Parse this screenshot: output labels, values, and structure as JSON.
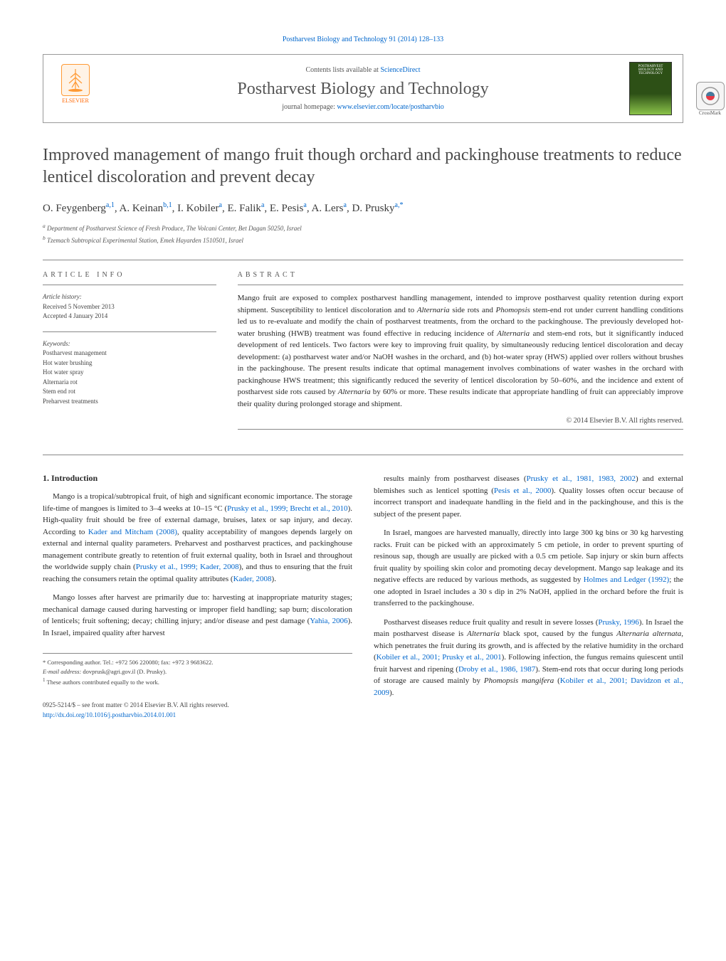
{
  "header": {
    "citation": "Postharvest Biology and Technology 91 (2014) 128–133",
    "contents_prefix": "Contents lists available at ",
    "contents_link": "ScienceDirect",
    "journal_name": "Postharvest Biology and Technology",
    "homepage_prefix": "journal homepage: ",
    "homepage_url": "www.elsevier.com/locate/postharvbio",
    "elsevier_label": "ELSEVIER",
    "cover_text": "POSTHARVEST BIOLOGY AND TECHNOLOGY",
    "crossmark_label": "CrossMark"
  },
  "article": {
    "title": "Improved management of mango fruit though orchard and packinghouse treatments to reduce lenticel discoloration and prevent decay",
    "authors_html": "O. Feygenberg",
    "authors": [
      {
        "name": "O. Feygenberg",
        "sup": "a,1"
      },
      {
        "name": "A. Keinan",
        "sup": "b,1"
      },
      {
        "name": "I. Kobiler",
        "sup": "a"
      },
      {
        "name": "E. Falik",
        "sup": "a"
      },
      {
        "name": "E. Pesis",
        "sup": "a"
      },
      {
        "name": "A. Lers",
        "sup": "a"
      },
      {
        "name": "D. Prusky",
        "sup": "a,*"
      }
    ],
    "affiliations": {
      "a": "Department of Postharvest Science of Fresh Produce, The Volcani Center, Bet Dagan 50250, Israel",
      "b": "Tzemach Subtropical Experimental Station, Emek Hayarden 1510501, Israel"
    }
  },
  "info": {
    "heading": "ARTICLE INFO",
    "history_label": "Article history:",
    "received": "Received 5 November 2013",
    "accepted": "Accepted 4 January 2014",
    "keywords_label": "Keywords:",
    "keywords": [
      "Postharvest management",
      "Hot water brushing",
      "Hot water spray",
      "Alternaria rot",
      "Stem end rot",
      "Preharvest treatments"
    ]
  },
  "abstract": {
    "heading": "ABSTRACT",
    "text": "Mango fruit are exposed to complex postharvest handling management, intended to improve postharvest quality retention during export shipment. Susceptibility to lenticel discoloration and to Alternaria side rots and Phomopsis stem-end rot under current handling conditions led us to re-evaluate and modify the chain of postharvest treatments, from the orchard to the packinghouse. The previously developed hot-water brushing (HWB) treatment was found effective in reducing incidence of Alternaria and stem-end rots, but it significantly induced development of red lenticels. Two factors were key to improving fruit quality, by simultaneously reducing lenticel discoloration and decay development: (a) postharvest water and/or NaOH washes in the orchard, and (b) hot-water spray (HWS) applied over rollers without brushes in the packinghouse. The present results indicate that optimal management involves combinations of water washes in the orchard with packinghouse HWS treatment; this significantly reduced the severity of lenticel discoloration by 50–60%, and the incidence and extent of postharvest side rots caused by Alternaria by 60% or more. These results indicate that appropriate handling of fruit can appreciably improve their quality during prolonged storage and shipment.",
    "copyright": "© 2014 Elsevier B.V. All rights reserved."
  },
  "body": {
    "intro_heading": "1. Introduction",
    "left_paragraphs": [
      "Mango is a tropical/subtropical fruit, of high and significant economic importance. The storage life-time of mangoes is limited to 3–4 weeks at 10–15 °C (Prusky et al., 1999; Brecht et al., 2010). High-quality fruit should be free of external damage, bruises, latex or sap injury, and decay. According to Kader and Mitcham (2008), quality acceptability of mangoes depends largely on external and internal quality parameters. Preharvest and postharvest practices, and packinghouse management contribute greatly to retention of fruit external quality, both in Israel and throughout the worldwide supply chain (Prusky et al., 1999; Kader, 2008), and thus to ensuring that the fruit reaching the consumers retain the optimal quality attributes (Kader, 2008).",
      "Mango losses after harvest are primarily due to: harvesting at inappropriate maturity stages; mechanical damage caused during harvesting or improper field handling; sap burn; discoloration of lenticels; fruit softening; decay; chilling injury; and/or disease and pest damage (Yahia, 2006). In Israel, impaired quality after harvest"
    ],
    "right_paragraphs": [
      "results mainly from postharvest diseases (Prusky et al., 1981, 1983, 2002) and external blemishes such as lenticel spotting (Pesis et al., 2000). Quality losses often occur because of incorrect transport and inadequate handling in the field and in the packinghouse, and this is the subject of the present paper.",
      "In Israel, mangoes are harvested manually, directly into large 300 kg bins or 30 kg harvesting racks. Fruit can be picked with an approximately 5 cm petiole, in order to prevent spurting of resinous sap, though are usually are picked with a 0.5 cm petiole. Sap injury or skin burn affects fruit quality by spoiling skin color and promoting decay development. Mango sap leakage and its negative effects are reduced by various methods, as suggested by Holmes and Ledger (1992); the one adopted in Israel includes a 30 s dip in 2% NaOH, applied in the orchard before the fruit is transferred to the packinghouse.",
      "Postharvest diseases reduce fruit quality and result in severe losses (Prusky, 1996). In Israel the main postharvest disease is Alternaria black spot, caused by the fungus Alternaria alternata, which penetrates the fruit during its growth, and is affected by the relative humidity in the orchard (Kobiler et al., 2001; Prusky et al., 2001). Following infection, the fungus remains quiescent until fruit harvest and ripening (Droby et al., 1986, 1987). Stem-end rots that occur during long periods of storage are caused mainly by Phomopsis mangifera (Kobiler et al., 2001; Davidzon et al., 2009)."
    ],
    "citations": {
      "c1": "Prusky et al., 1999; Brecht et al., 2010",
      "c2": "Kader and Mitcham (2008)",
      "c3": "Prusky et al., 1999; Kader, 2008",
      "c4": "Kader, 2008",
      "c5": "Yahia, 2006",
      "c6": "Prusky et al., 1981, 1983, 2002",
      "c7": "Pesis et al., 2000",
      "c8": "Holmes and Ledger (1992)",
      "c9": "Prusky, 1996",
      "c10": "Kobiler et al., 2001; Prusky et al., 2001",
      "c11": "Droby et al., 1986, 1987",
      "c12": "Kobiler et al., 2001; Davidzon et al., 2009"
    }
  },
  "footnotes": {
    "corr": "Corresponding author. Tel.: +972 506 220080; fax: +972 3 9683622.",
    "email_label": "E-mail address:",
    "email": "dovprusk@agri.gov.il",
    "email_who": "(D. Prusky).",
    "equal": "These authors contributed equally to the work."
  },
  "footer": {
    "issn": "0925-5214/$ – see front matter © 2014 Elsevier B.V. All rights reserved.",
    "doi": "http://dx.doi.org/10.1016/j.postharvbio.2014.01.001"
  },
  "colors": {
    "link": "#0066cc",
    "orange": "#ff6600",
    "text": "#2a2a2a",
    "muted": "#555555",
    "rule": "#888888"
  }
}
